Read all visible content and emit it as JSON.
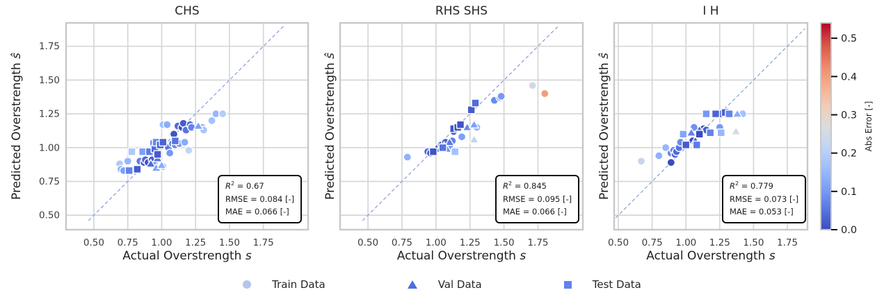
{
  "colors": {
    "background": "#ffffff",
    "grid": "#d6d6d6",
    "spine": "#c8c8c8",
    "diagonal_line": "#8aa5d8",
    "text": "#262626",
    "tick_text": "#3d3d3d",
    "marker_edge": "#ffffff",
    "stats_border": "#0d0d0d",
    "colormap_coolwarm": [
      "#3b4cc0",
      "#5977e3",
      "#7b9ff9",
      "#9ebeff",
      "#c0d4f5",
      "#dddcdc",
      "#f2cbb7",
      "#f7ac8e",
      "#ee8468",
      "#d65244",
      "#b40426"
    ]
  },
  "chart_data": {
    "type": "scatter",
    "color_by": "abs_error |predicted - actual|",
    "legend": {
      "position": "bottom-center",
      "items": [
        {
          "label": "Train Data",
          "marker": "circle",
          "color": "#b3c6ec"
        },
        {
          "label": "Val Data",
          "marker": "triangle",
          "color": "#4a6fe3"
        },
        {
          "label": "Test Data",
          "marker": "square",
          "color": "#6282ee"
        }
      ]
    },
    "colorbar": {
      "label": "Abs Error [-]",
      "vmin": 0.0,
      "vmax": 0.54,
      "ticks": [
        {
          "value": 0.0,
          "label": "0.0"
        },
        {
          "value": 0.1,
          "label": "0.1"
        },
        {
          "value": 0.2,
          "label": "0.2"
        },
        {
          "value": 0.3,
          "label": "0.3"
        },
        {
          "value": 0.4,
          "label": "0.4"
        },
        {
          "value": 0.5,
          "label": "0.5"
        }
      ]
    },
    "subplots": [
      {
        "title": "CHS",
        "xlabel": "Actual Overstrength s",
        "ylabel": "Predicted Overstrength ŝ",
        "xlabel_main": "Actual Overstrength ",
        "xlabel_sym": "s",
        "ylabel_main": "Predicted Overstrength ",
        "ylabel_sym": "ŝ",
        "xlim": [
          0.295,
          2.08
        ],
        "ylim": [
          0.393,
          1.923
        ],
        "tick_values": [
          0.5,
          0.75,
          1.0,
          1.25,
          1.5,
          1.75
        ],
        "tick_labels": [
          "0.50",
          "0.75",
          "1.00",
          "1.25",
          "1.50",
          "1.75"
        ],
        "show_ytick_labels": true,
        "grid": true,
        "identity_line": [
          0.46,
          1.9
        ],
        "stats": {
          "r2_label": "R",
          "r2_sup": "2",
          "r2_rest": " = 0.67",
          "rmse": "RMSE = 0.084 [-]",
          "mae": "MAE = 0.066 [-]"
        },
        "series": [
          {
            "name": "Train Data",
            "marker": "circle",
            "points": [
              [
                0.69,
                0.88
              ],
              [
                0.7,
                0.84
              ],
              [
                0.72,
                0.83
              ],
              [
                0.75,
                0.9
              ],
              [
                0.84,
                0.9
              ],
              [
                0.87,
                0.89
              ],
              [
                0.88,
                0.91
              ],
              [
                0.9,
                0.89
              ],
              [
                0.93,
                0.91
              ],
              [
                0.95,
                0.87
              ],
              [
                0.97,
                0.85
              ],
              [
                1.0,
                0.86
              ],
              [
                1.01,
                0.86
              ],
              [
                1.01,
                1.17
              ],
              [
                1.04,
                1.17
              ],
              [
                1.05,
                1.0
              ],
              [
                1.06,
                0.96
              ],
              [
                1.08,
                1.03
              ],
              [
                1.09,
                1.1
              ],
              [
                1.1,
                1.02
              ],
              [
                1.12,
                1.16
              ],
              [
                1.13,
                1.03
              ],
              [
                1.15,
                1.15
              ],
              [
                1.16,
                1.18
              ],
              [
                1.17,
                1.04
              ],
              [
                1.18,
                1.13
              ],
              [
                1.2,
                0.98
              ],
              [
                1.21,
                1.17
              ],
              [
                1.22,
                1.15
              ],
              [
                1.3,
                1.15
              ],
              [
                1.31,
                1.13
              ],
              [
                1.37,
                1.2
              ],
              [
                1.4,
                1.25
              ],
              [
                1.45,
                1.25
              ]
            ]
          },
          {
            "name": "Val Data",
            "marker": "triangle",
            "points": [
              [
                0.92,
                0.88
              ],
              [
                0.96,
                0.85
              ],
              [
                0.97,
                0.92
              ],
              [
                1.0,
                0.87
              ],
              [
                1.27,
                1.16
              ]
            ]
          },
          {
            "name": "Test Data",
            "marker": "square",
            "points": [
              [
                0.76,
                0.83
              ],
              [
                0.78,
                0.97
              ],
              [
                0.82,
                0.84
              ],
              [
                0.86,
                0.97
              ],
              [
                0.91,
                0.97
              ],
              [
                0.94,
                1.03
              ],
              [
                0.95,
                0.99
              ],
              [
                0.96,
                1.04
              ],
              [
                0.97,
                0.95
              ],
              [
                0.99,
                1.02
              ],
              [
                1.01,
                1.04
              ],
              [
                1.1,
                1.05
              ]
            ]
          }
        ]
      },
      {
        "title": "RHS SHS",
        "xlabel": "Actual Overstrength s",
        "ylabel": "Predicted Overstrength ŝ",
        "xlabel_main": "Actual Overstrength ",
        "xlabel_sym": "s",
        "ylabel_main": "Predicted Overstrength ",
        "ylabel_sym": "ŝ",
        "xlim": [
          0.295,
          2.08
        ],
        "ylim": [
          0.393,
          1.923
        ],
        "tick_values": [
          0.5,
          0.75,
          1.0,
          1.25,
          1.5,
          1.75
        ],
        "tick_labels": [
          "0.50",
          "0.75",
          "1.00",
          "1.25",
          "1.50",
          "1.75"
        ],
        "show_ytick_labels": false,
        "grid": true,
        "identity_line": [
          0.46,
          1.9
        ],
        "stats": {
          "r2_label": "R",
          "r2_sup": "2",
          "r2_rest": " = 0.845",
          "rmse": "RMSE = 0.095 [-]",
          "mae": "MAE = 0.066 [-]"
        },
        "series": [
          {
            "name": "Train Data",
            "marker": "circle",
            "points": [
              [
                0.79,
                0.93
              ],
              [
                0.94,
                0.97
              ],
              [
                0.96,
                0.96
              ],
              [
                1.02,
                1.0
              ],
              [
                1.04,
                1.02
              ],
              [
                1.05,
                0.99
              ],
              [
                1.07,
                1.04
              ],
              [
                1.1,
                1.01
              ],
              [
                1.12,
                1.05
              ],
              [
                1.13,
                1.12
              ],
              [
                1.19,
                1.08
              ],
              [
                1.3,
                1.15
              ],
              [
                1.43,
                1.35
              ],
              [
                1.47,
                1.37
              ],
              [
                1.48,
                1.38
              ],
              [
                1.71,
                1.46
              ],
              [
                1.8,
                1.4
              ]
            ]
          },
          {
            "name": "Val Data",
            "marker": "triangle",
            "points": [
              [
                1.03,
                0.99
              ],
              [
                1.06,
                1.01
              ],
              [
                1.08,
                0.99
              ],
              [
                1.1,
                1.04
              ],
              [
                1.13,
                1.15
              ],
              [
                1.23,
                1.15
              ],
              [
                1.28,
                1.17
              ],
              [
                1.28,
                1.06
              ]
            ]
          },
          {
            "name": "Test Data",
            "marker": "square",
            "points": [
              [
                0.98,
                0.97
              ],
              [
                1.05,
                1.0
              ],
              [
                1.13,
                1.14
              ],
              [
                1.14,
                0.97
              ],
              [
                1.16,
                1.15
              ],
              [
                1.18,
                1.17
              ],
              [
                1.26,
                1.28
              ],
              [
                1.29,
                1.33
              ]
            ]
          }
        ]
      },
      {
        "title": "I H",
        "xlabel": "Actual Overstrength s",
        "ylabel": "Predicted Overstrength ŝ",
        "xlabel_main": "Actual Overstrength ",
        "xlabel_sym": "s",
        "ylabel_main": "Predicted Overstrength ",
        "ylabel_sym": "ŝ",
        "xlim": [
          0.469,
          1.899
        ],
        "ylim": [
          0.393,
          1.923
        ],
        "tick_values": [
          0.5,
          0.75,
          1.0,
          1.25,
          1.5,
          1.75
        ],
        "tick_labels": [
          "0.50",
          "0.75",
          "1.00",
          "1.25",
          "1.50",
          "1.75"
        ],
        "show_ytick_labels": false,
        "grid": true,
        "identity_line": [
          0.48,
          1.88
        ],
        "stats": {
          "r2_label": "R",
          "r2_sup": "2",
          "r2_rest": " = 0.779",
          "rmse": "RMSE = 0.073 [-]",
          "mae": "MAE = 0.053 [-]"
        },
        "series": [
          {
            "name": "Train Data",
            "marker": "circle",
            "points": [
              [
                0.67,
                0.9
              ],
              [
                0.8,
                0.94
              ],
              [
                0.85,
                1.0
              ],
              [
                0.89,
                0.96
              ],
              [
                0.89,
                0.89
              ],
              [
                0.91,
                0.98
              ],
              [
                0.92,
                0.95
              ],
              [
                0.93,
                0.97
              ],
              [
                0.95,
                1.0
              ],
              [
                0.96,
                1.04
              ],
              [
                1.05,
                1.05
              ],
              [
                1.06,
                1.15
              ],
              [
                1.13,
                1.14
              ],
              [
                1.15,
                1.13
              ],
              [
                1.25,
                1.15
              ],
              [
                1.26,
                1.25
              ],
              [
                1.42,
                1.25
              ]
            ]
          },
          {
            "name": "Val Data",
            "marker": "triangle",
            "points": [
              [
                1.04,
                1.11
              ],
              [
                1.07,
                1.05
              ],
              [
                1.1,
                1.13
              ],
              [
                1.37,
                1.12
              ],
              [
                1.38,
                1.25
              ]
            ]
          },
          {
            "name": "Test Data",
            "marker": "square",
            "points": [
              [
                0.98,
                1.1
              ],
              [
                1.0,
                1.02
              ],
              [
                1.08,
                1.02
              ],
              [
                1.1,
                1.1
              ],
              [
                1.18,
                1.11
              ],
              [
                1.26,
                1.11
              ],
              [
                1.15,
                1.25
              ],
              [
                1.22,
                1.25
              ],
              [
                1.29,
                1.26
              ],
              [
                1.32,
                1.25
              ]
            ]
          }
        ]
      }
    ]
  }
}
